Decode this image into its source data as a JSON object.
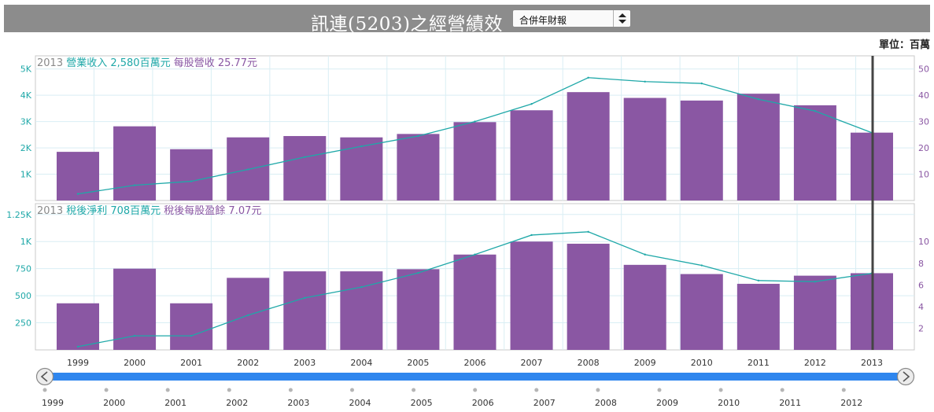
{
  "header": {
    "title": "訊連(5203)之經營績效",
    "report_select": "合併年財報",
    "unit_label": "單位：百萬"
  },
  "icons": {
    "select_arrows": "up-down-arrows-icon",
    "scroll_left": "chevron-left-icon",
    "scroll_right": "chevron-right-icon"
  },
  "colors": {
    "bar": "#8a57a3",
    "line": "#1fa8a8",
    "left_axis": "#1fa8a8",
    "right_axis": "#8a57a3",
    "navigator_bar": "#2f86ee",
    "title_bar": "#8c8c8c",
    "cursor": "#444444"
  },
  "chart_data": [
    {
      "type": "bar",
      "name": "revenue-panel",
      "legend_year": "2013",
      "legend_label1": "營業收入 2,580百萬元",
      "legend_label2": "每股營收 25.77元",
      "categories": [
        "1999",
        "2000",
        "2001",
        "2002",
        "2003",
        "2004",
        "2005",
        "2006",
        "2007",
        "2008",
        "2009",
        "2010",
        "2011",
        "2012",
        "2013"
      ],
      "series": [
        {
          "name": "營業收入",
          "axis": "left",
          "values": [
            1850,
            2820,
            1950,
            2400,
            2450,
            2400,
            2530,
            2980,
            3430,
            4120,
            3900,
            3800,
            4060,
            3620,
            2580
          ]
        },
        {
          "name": "每股營收",
          "axis": "right",
          "type": "line",
          "values": [
            2.5,
            5.8,
            7.3,
            11.8,
            16.5,
            20.6,
            24.5,
            30.0,
            36.7,
            46.7,
            45.2,
            44.5,
            38.5,
            34.0,
            25.77
          ]
        }
      ],
      "ylim_left": [
        0,
        5500
      ],
      "yticks_left": [
        1000,
        2000,
        3000,
        4000,
        5000
      ],
      "ytick_labels_left": [
        "1K",
        "2K",
        "3K",
        "4K",
        "5K"
      ],
      "ylim_right": [
        0,
        55
      ],
      "yticks_right": [
        10,
        20,
        30,
        40,
        50
      ],
      "ytick_labels_right": [
        "10",
        "20",
        "30",
        "40",
        "50"
      ]
    },
    {
      "type": "bar",
      "name": "net-income-panel",
      "legend_year": "2013",
      "legend_label1": "稅後淨利 708百萬元",
      "legend_label2": "稅後每股盈餘 7.07元",
      "categories": [
        "1999",
        "2000",
        "2001",
        "2002",
        "2003",
        "2004",
        "2005",
        "2006",
        "2007",
        "2008",
        "2009",
        "2010",
        "2011",
        "2012",
        "2013"
      ],
      "series": [
        {
          "name": "稅後淨利",
          "axis": "left",
          "values": [
            430,
            750,
            430,
            665,
            725,
            725,
            745,
            880,
            1000,
            980,
            785,
            700,
            610,
            685,
            708
          ]
        },
        {
          "name": "稅後每股盈餘",
          "axis": "right",
          "type": "line",
          "values": [
            0.3,
            1.3,
            1.3,
            3.2,
            4.8,
            5.8,
            7.1,
            8.8,
            10.6,
            10.9,
            8.8,
            7.8,
            6.4,
            6.3,
            7.07
          ]
        }
      ],
      "ylim_left": [
        0,
        1350
      ],
      "yticks_left": [
        250,
        500,
        750,
        1000,
        1250
      ],
      "ytick_labels_left": [
        "250",
        "500",
        "750",
        "1K",
        "1.25K"
      ],
      "ylim_right": [
        0,
        13.5
      ],
      "yticks_right": [
        2,
        4,
        6,
        8,
        10
      ],
      "ytick_labels_right": [
        "2",
        "4",
        "6",
        "8",
        "10"
      ]
    }
  ],
  "navigator": {
    "years": [
      "1999",
      "2000",
      "2001",
      "2002",
      "2003",
      "2004",
      "2005",
      "2006",
      "2007",
      "2008",
      "2009",
      "2010",
      "2011",
      "2012"
    ]
  }
}
